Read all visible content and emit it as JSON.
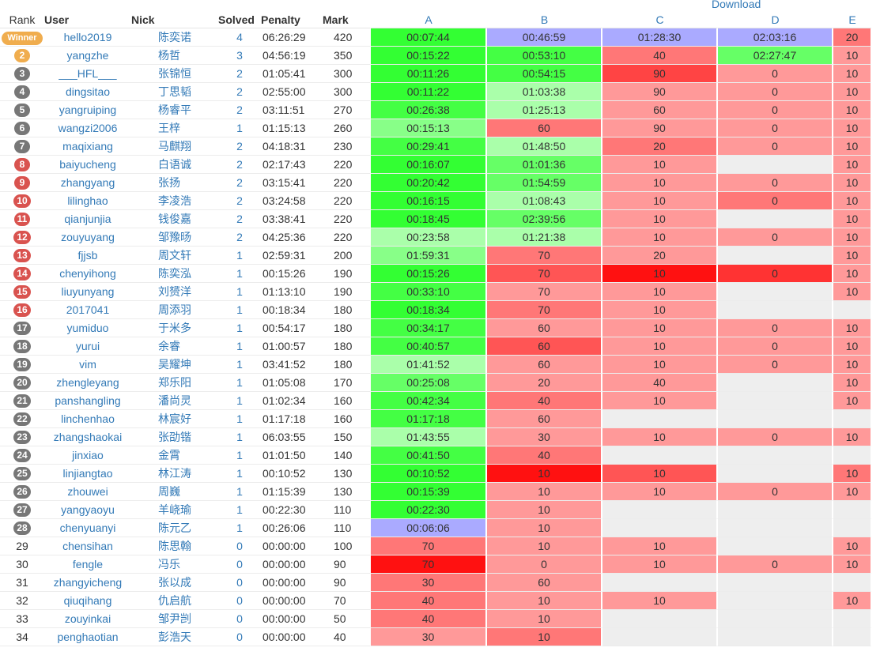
{
  "download_label": "Download",
  "headers": {
    "rank": "Rank",
    "user": "User",
    "nick": "Nick",
    "solved": "Solved",
    "penalty": "Penalty",
    "mark": "Mark",
    "problems": [
      "A",
      "B",
      "C",
      "D",
      "E"
    ]
  },
  "colors": {
    "ac": "#33ff33",
    "ac_late": "#aaffaa",
    "first_blood": "#aaaaff",
    "wrong": "#ff8888",
    "wrong_heavy": "#ff3333",
    "empty": "#eeeeee",
    "link": "#337ab7",
    "badge_gold": "#f0ad4e",
    "badge_silver": "#777777",
    "badge_bronze": "#d9534f"
  },
  "rows": [
    {
      "rank": "Winner",
      "badge": "win",
      "user": "hello2019",
      "nick": "陈奕诺",
      "solved": "4",
      "penalty": "06:26:29",
      "mark": "420",
      "cells": [
        {
          "t": "00:07:44",
          "c": "#33ff33"
        },
        {
          "t": "00:46:59",
          "c": "#aaaaff"
        },
        {
          "t": "01:28:30",
          "c": "#aaaaff"
        },
        {
          "t": "02:03:16",
          "c": "#aaaaff"
        },
        {
          "t": "20",
          "c": "#ff7777"
        }
      ]
    },
    {
      "rank": "2",
      "badge": "gold",
      "user": "yangzhe",
      "nick": "杨哲",
      "solved": "3",
      "penalty": "04:56:19",
      "mark": "350",
      "cells": [
        {
          "t": "00:15:22",
          "c": "#33ff33"
        },
        {
          "t": "00:53:10",
          "c": "#44ff44"
        },
        {
          "t": "40",
          "c": "#ff7777"
        },
        {
          "t": "02:27:47",
          "c": "#66ff66"
        },
        {
          "t": "10",
          "c": "#ff9999"
        }
      ]
    },
    {
      "rank": "3",
      "badge": "silver",
      "user": "___HFL___",
      "nick": "张锦恒",
      "solved": "2",
      "penalty": "01:05:41",
      "mark": "300",
      "cells": [
        {
          "t": "00:11:26",
          "c": "#33ff33"
        },
        {
          "t": "00:54:15",
          "c": "#44ff44"
        },
        {
          "t": "90",
          "c": "#ff4444"
        },
        {
          "t": "0",
          "c": "#ff9999"
        },
        {
          "t": "10",
          "c": "#ff9999"
        }
      ]
    },
    {
      "rank": "4",
      "badge": "silver",
      "user": "dingsitao",
      "nick": "丁思韬",
      "solved": "2",
      "penalty": "02:55:00",
      "mark": "300",
      "cells": [
        {
          "t": "00:11:22",
          "c": "#33ff33"
        },
        {
          "t": "01:03:38",
          "c": "#aaffaa"
        },
        {
          "t": "90",
          "c": "#ff9999"
        },
        {
          "t": "0",
          "c": "#ff9999"
        },
        {
          "t": "10",
          "c": "#ff9999"
        }
      ]
    },
    {
      "rank": "5",
      "badge": "silver",
      "user": "yangruiping",
      "nick": "杨睿平",
      "solved": "2",
      "penalty": "03:11:51",
      "mark": "270",
      "cells": [
        {
          "t": "00:26:38",
          "c": "#44ff44"
        },
        {
          "t": "01:25:13",
          "c": "#aaffaa"
        },
        {
          "t": "60",
          "c": "#ff9999"
        },
        {
          "t": "0",
          "c": "#ff9999"
        },
        {
          "t": "10",
          "c": "#ff9999"
        }
      ]
    },
    {
      "rank": "6",
      "badge": "silver",
      "user": "wangzi2006",
      "nick": "王梓",
      "solved": "1",
      "penalty": "01:15:13",
      "mark": "260",
      "cells": [
        {
          "t": "00:15:13",
          "c": "#88ff88"
        },
        {
          "t": "60",
          "c": "#ff7777"
        },
        {
          "t": "90",
          "c": "#ff9999"
        },
        {
          "t": "0",
          "c": "#ff9999"
        },
        {
          "t": "10",
          "c": "#ff9999"
        }
      ]
    },
    {
      "rank": "7",
      "badge": "silver",
      "user": "maqixiang",
      "nick": "马麒翔",
      "solved": "2",
      "penalty": "04:18:31",
      "mark": "230",
      "cells": [
        {
          "t": "00:29:41",
          "c": "#44ff44"
        },
        {
          "t": "01:48:50",
          "c": "#aaffaa"
        },
        {
          "t": "20",
          "c": "#ff7777"
        },
        {
          "t": "0",
          "c": "#ff9999"
        },
        {
          "t": "10",
          "c": "#ff9999"
        }
      ]
    },
    {
      "rank": "8",
      "badge": "bronze",
      "user": "baiyucheng",
      "nick": "白语诚",
      "solved": "2",
      "penalty": "02:17:43",
      "mark": "220",
      "cells": [
        {
          "t": "00:16:07",
          "c": "#33ff33"
        },
        {
          "t": "01:01:36",
          "c": "#66ff66"
        },
        {
          "t": "10",
          "c": "#ff9999"
        },
        {
          "t": "",
          "c": "#eeeeee"
        },
        {
          "t": "10",
          "c": "#ff9999"
        }
      ]
    },
    {
      "rank": "9",
      "badge": "bronze",
      "user": "zhangyang",
      "nick": "张扬",
      "solved": "2",
      "penalty": "03:15:41",
      "mark": "220",
      "cells": [
        {
          "t": "00:20:42",
          "c": "#33ff33"
        },
        {
          "t": "01:54:59",
          "c": "#66ff66"
        },
        {
          "t": "10",
          "c": "#ff9999"
        },
        {
          "t": "0",
          "c": "#ff9999"
        },
        {
          "t": "10",
          "c": "#ff9999"
        }
      ]
    },
    {
      "rank": "10",
      "badge": "bronze",
      "user": "lilinghao",
      "nick": "李凌浩",
      "solved": "2",
      "penalty": "03:24:58",
      "mark": "220",
      "cells": [
        {
          "t": "00:16:15",
          "c": "#33ff33"
        },
        {
          "t": "01:08:43",
          "c": "#aaffaa"
        },
        {
          "t": "10",
          "c": "#ff9999"
        },
        {
          "t": "0",
          "c": "#ff7777"
        },
        {
          "t": "10",
          "c": "#ff9999"
        }
      ]
    },
    {
      "rank": "11",
      "badge": "bronze",
      "user": "qianjunjia",
      "nick": "钱俊嘉",
      "solved": "2",
      "penalty": "03:38:41",
      "mark": "220",
      "cells": [
        {
          "t": "00:18:45",
          "c": "#33ff33"
        },
        {
          "t": "02:39:56",
          "c": "#66ff66"
        },
        {
          "t": "10",
          "c": "#ff9999"
        },
        {
          "t": "",
          "c": "#eeeeee"
        },
        {
          "t": "10",
          "c": "#ff9999"
        }
      ]
    },
    {
      "rank": "12",
      "badge": "bronze",
      "user": "zouyuyang",
      "nick": "邹豫旸",
      "solved": "2",
      "penalty": "04:25:36",
      "mark": "220",
      "cells": [
        {
          "t": "00:23:58",
          "c": "#aaffaa"
        },
        {
          "t": "01:21:38",
          "c": "#aaffaa"
        },
        {
          "t": "10",
          "c": "#ff9999"
        },
        {
          "t": "0",
          "c": "#ff9999"
        },
        {
          "t": "10",
          "c": "#ff9999"
        }
      ]
    },
    {
      "rank": "13",
      "badge": "bronze",
      "user": "fjjsb",
      "nick": "周文轩",
      "solved": "1",
      "penalty": "02:59:31",
      "mark": "200",
      "cells": [
        {
          "t": "01:59:31",
          "c": "#88ff88"
        },
        {
          "t": "70",
          "c": "#ff7777"
        },
        {
          "t": "20",
          "c": "#ff9999"
        },
        {
          "t": "",
          "c": "#eeeeee"
        },
        {
          "t": "10",
          "c": "#ff9999"
        }
      ]
    },
    {
      "rank": "14",
      "badge": "bronze",
      "user": "chenyihong",
      "nick": "陈奕泓",
      "solved": "1",
      "penalty": "00:15:26",
      "mark": "190",
      "cells": [
        {
          "t": "00:15:26",
          "c": "#33ff33"
        },
        {
          "t": "70",
          "c": "#ff5555"
        },
        {
          "t": "10",
          "c": "#ff1111"
        },
        {
          "t": "0",
          "c": "#ff3333"
        },
        {
          "t": "10",
          "c": "#ff9999"
        }
      ]
    },
    {
      "rank": "15",
      "badge": "bronze",
      "user": "liuyunyang",
      "nick": "刘赟洋",
      "solved": "1",
      "penalty": "01:13:10",
      "mark": "190",
      "cells": [
        {
          "t": "00:33:10",
          "c": "#44ff44"
        },
        {
          "t": "70",
          "c": "#ff9999"
        },
        {
          "t": "10",
          "c": "#ff9999"
        },
        {
          "t": "",
          "c": "#eeeeee"
        },
        {
          "t": "10",
          "c": "#ff9999"
        }
      ]
    },
    {
      "rank": "16",
      "badge": "bronze",
      "user": "2017041",
      "nick": "周添羽",
      "solved": "1",
      "penalty": "00:18:34",
      "mark": "180",
      "cells": [
        {
          "t": "00:18:34",
          "c": "#33ff33"
        },
        {
          "t": "70",
          "c": "#ff7777"
        },
        {
          "t": "10",
          "c": "#ff9999"
        },
        {
          "t": "",
          "c": "#eeeeee"
        },
        {
          "t": "",
          "c": "#eeeeee"
        }
      ]
    },
    {
      "rank": "17",
      "badge": "silver",
      "user": "yumiduo",
      "nick": "于米多",
      "solved": "1",
      "penalty": "00:54:17",
      "mark": "180",
      "cells": [
        {
          "t": "00:34:17",
          "c": "#44ff44"
        },
        {
          "t": "60",
          "c": "#ff9999"
        },
        {
          "t": "10",
          "c": "#ff9999"
        },
        {
          "t": "0",
          "c": "#ff9999"
        },
        {
          "t": "10",
          "c": "#ff9999"
        }
      ]
    },
    {
      "rank": "18",
      "badge": "silver",
      "user": "yurui",
      "nick": "余睿",
      "solved": "1",
      "penalty": "01:00:57",
      "mark": "180",
      "cells": [
        {
          "t": "00:40:57",
          "c": "#44ff44"
        },
        {
          "t": "60",
          "c": "#ff5555"
        },
        {
          "t": "10",
          "c": "#ff9999"
        },
        {
          "t": "0",
          "c": "#ff9999"
        },
        {
          "t": "10",
          "c": "#ff9999"
        }
      ]
    },
    {
      "rank": "19",
      "badge": "silver",
      "user": "vim",
      "nick": "吴耀坤",
      "solved": "1",
      "penalty": "03:41:52",
      "mark": "180",
      "cells": [
        {
          "t": "01:41:52",
          "c": "#aaffaa"
        },
        {
          "t": "60",
          "c": "#ff9999"
        },
        {
          "t": "10",
          "c": "#ff9999"
        },
        {
          "t": "0",
          "c": "#ff9999"
        },
        {
          "t": "10",
          "c": "#ff9999"
        }
      ]
    },
    {
      "rank": "20",
      "badge": "silver",
      "user": "zhengleyang",
      "nick": "郑乐阳",
      "solved": "1",
      "penalty": "01:05:08",
      "mark": "170",
      "cells": [
        {
          "t": "00:25:08",
          "c": "#66ff66"
        },
        {
          "t": "20",
          "c": "#ff9999"
        },
        {
          "t": "40",
          "c": "#ff9999"
        },
        {
          "t": "",
          "c": "#eeeeee"
        },
        {
          "t": "10",
          "c": "#ff9999"
        }
      ]
    },
    {
      "rank": "21",
      "badge": "silver",
      "user": "panshangling",
      "nick": "潘尚灵",
      "solved": "1",
      "penalty": "01:02:34",
      "mark": "160",
      "cells": [
        {
          "t": "00:42:34",
          "c": "#44ff44"
        },
        {
          "t": "40",
          "c": "#ff7777"
        },
        {
          "t": "10",
          "c": "#ff9999"
        },
        {
          "t": "",
          "c": "#eeeeee"
        },
        {
          "t": "10",
          "c": "#ff9999"
        }
      ]
    },
    {
      "rank": "22",
      "badge": "silver",
      "user": "linchenhao",
      "nick": "林宸好",
      "solved": "1",
      "penalty": "01:17:18",
      "mark": "160",
      "cells": [
        {
          "t": "01:17:18",
          "c": "#44ff44"
        },
        {
          "t": "60",
          "c": "#ff9999"
        },
        {
          "t": "",
          "c": "#eeeeee"
        },
        {
          "t": "",
          "c": "#eeeeee"
        },
        {
          "t": "",
          "c": "#eeeeee"
        }
      ]
    },
    {
      "rank": "23",
      "badge": "silver",
      "user": "zhangshaokai",
      "nick": "张劭锴",
      "solved": "1",
      "penalty": "06:03:55",
      "mark": "150",
      "cells": [
        {
          "t": "01:43:55",
          "c": "#aaffaa"
        },
        {
          "t": "30",
          "c": "#ff9999"
        },
        {
          "t": "10",
          "c": "#ff9999"
        },
        {
          "t": "0",
          "c": "#ff9999"
        },
        {
          "t": "10",
          "c": "#ff9999"
        }
      ]
    },
    {
      "rank": "24",
      "badge": "silver",
      "user": "jinxiao",
      "nick": "金霄",
      "solved": "1",
      "penalty": "01:01:50",
      "mark": "140",
      "cells": [
        {
          "t": "00:41:50",
          "c": "#44ff44"
        },
        {
          "t": "40",
          "c": "#ff7777"
        },
        {
          "t": "",
          "c": "#eeeeee"
        },
        {
          "t": "",
          "c": "#eeeeee"
        },
        {
          "t": "",
          "c": "#eeeeee"
        }
      ]
    },
    {
      "rank": "25",
      "badge": "silver",
      "user": "linjiangtao",
      "nick": "林江涛",
      "solved": "1",
      "penalty": "00:10:52",
      "mark": "130",
      "cells": [
        {
          "t": "00:10:52",
          "c": "#33ff33"
        },
        {
          "t": "10",
          "c": "#ff1111"
        },
        {
          "t": "10",
          "c": "#ff5555"
        },
        {
          "t": "",
          "c": "#eeeeee"
        },
        {
          "t": "10",
          "c": "#ff7777"
        }
      ]
    },
    {
      "rank": "26",
      "badge": "silver",
      "user": "zhouwei",
      "nick": "周巍",
      "solved": "1",
      "penalty": "01:15:39",
      "mark": "130",
      "cells": [
        {
          "t": "00:15:39",
          "c": "#33ff33"
        },
        {
          "t": "10",
          "c": "#ff9999"
        },
        {
          "t": "10",
          "c": "#ff9999"
        },
        {
          "t": "0",
          "c": "#ff9999"
        },
        {
          "t": "10",
          "c": "#ff9999"
        }
      ]
    },
    {
      "rank": "27",
      "badge": "silver",
      "user": "yangyaoyu",
      "nick": "羊峣瑜",
      "solved": "1",
      "penalty": "00:22:30",
      "mark": "110",
      "cells": [
        {
          "t": "00:22:30",
          "c": "#33ff33"
        },
        {
          "t": "10",
          "c": "#ff9999"
        },
        {
          "t": "",
          "c": "#eeeeee"
        },
        {
          "t": "",
          "c": "#eeeeee"
        },
        {
          "t": "",
          "c": "#eeeeee"
        }
      ]
    },
    {
      "rank": "28",
      "badge": "silver",
      "user": "chenyuanyi",
      "nick": "陈元乙",
      "solved": "1",
      "penalty": "00:26:06",
      "mark": "110",
      "cells": [
        {
          "t": "00:06:06",
          "c": "#aaaaff"
        },
        {
          "t": "10",
          "c": "#ff9999"
        },
        {
          "t": "",
          "c": "#eeeeee"
        },
        {
          "t": "",
          "c": "#eeeeee"
        },
        {
          "t": "",
          "c": "#eeeeee"
        }
      ]
    },
    {
      "rank": "29",
      "badge": "",
      "user": "chensihan",
      "nick": "陈思翰",
      "solved": "0",
      "penalty": "00:00:00",
      "mark": "100",
      "cells": [
        {
          "t": "70",
          "c": "#ff7777"
        },
        {
          "t": "10",
          "c": "#ff9999"
        },
        {
          "t": "10",
          "c": "#ff9999"
        },
        {
          "t": "",
          "c": "#eeeeee"
        },
        {
          "t": "10",
          "c": "#ff9999"
        }
      ]
    },
    {
      "rank": "30",
      "badge": "",
      "user": "fengle",
      "nick": "冯乐",
      "solved": "0",
      "penalty": "00:00:00",
      "mark": "90",
      "cells": [
        {
          "t": "70",
          "c": "#ff1111"
        },
        {
          "t": "0",
          "c": "#ff9999"
        },
        {
          "t": "10",
          "c": "#ff9999"
        },
        {
          "t": "0",
          "c": "#ff9999"
        },
        {
          "t": "10",
          "c": "#ff9999"
        }
      ]
    },
    {
      "rank": "31",
      "badge": "",
      "user": "zhangyicheng",
      "nick": "张以成",
      "solved": "0",
      "penalty": "00:00:00",
      "mark": "90",
      "cells": [
        {
          "t": "30",
          "c": "#ff7777"
        },
        {
          "t": "60",
          "c": "#ff9999"
        },
        {
          "t": "",
          "c": "#eeeeee"
        },
        {
          "t": "",
          "c": "#eeeeee"
        },
        {
          "t": "",
          "c": "#eeeeee"
        }
      ]
    },
    {
      "rank": "32",
      "badge": "",
      "user": "qiuqihang",
      "nick": "仇启航",
      "solved": "0",
      "penalty": "00:00:00",
      "mark": "70",
      "cells": [
        {
          "t": "40",
          "c": "#ff7777"
        },
        {
          "t": "10",
          "c": "#ff9999"
        },
        {
          "t": "10",
          "c": "#ff9999"
        },
        {
          "t": "",
          "c": "#eeeeee"
        },
        {
          "t": "10",
          "c": "#ff9999"
        }
      ]
    },
    {
      "rank": "33",
      "badge": "",
      "user": "zouyinkai",
      "nick": "邹尹剀",
      "solved": "0",
      "penalty": "00:00:00",
      "mark": "50",
      "cells": [
        {
          "t": "40",
          "c": "#ff7777"
        },
        {
          "t": "10",
          "c": "#ff9999"
        },
        {
          "t": "",
          "c": "#eeeeee"
        },
        {
          "t": "",
          "c": "#eeeeee"
        },
        {
          "t": "",
          "c": "#eeeeee"
        }
      ]
    },
    {
      "rank": "34",
      "badge": "",
      "user": "penghaotian",
      "nick": "彭浩天",
      "solved": "0",
      "penalty": "00:00:00",
      "mark": "40",
      "cells": [
        {
          "t": "30",
          "c": "#ff9999"
        },
        {
          "t": "10",
          "c": "#ff7777"
        },
        {
          "t": "",
          "c": "#eeeeee"
        },
        {
          "t": "",
          "c": "#eeeeee"
        },
        {
          "t": "",
          "c": "#eeeeee"
        }
      ]
    }
  ]
}
